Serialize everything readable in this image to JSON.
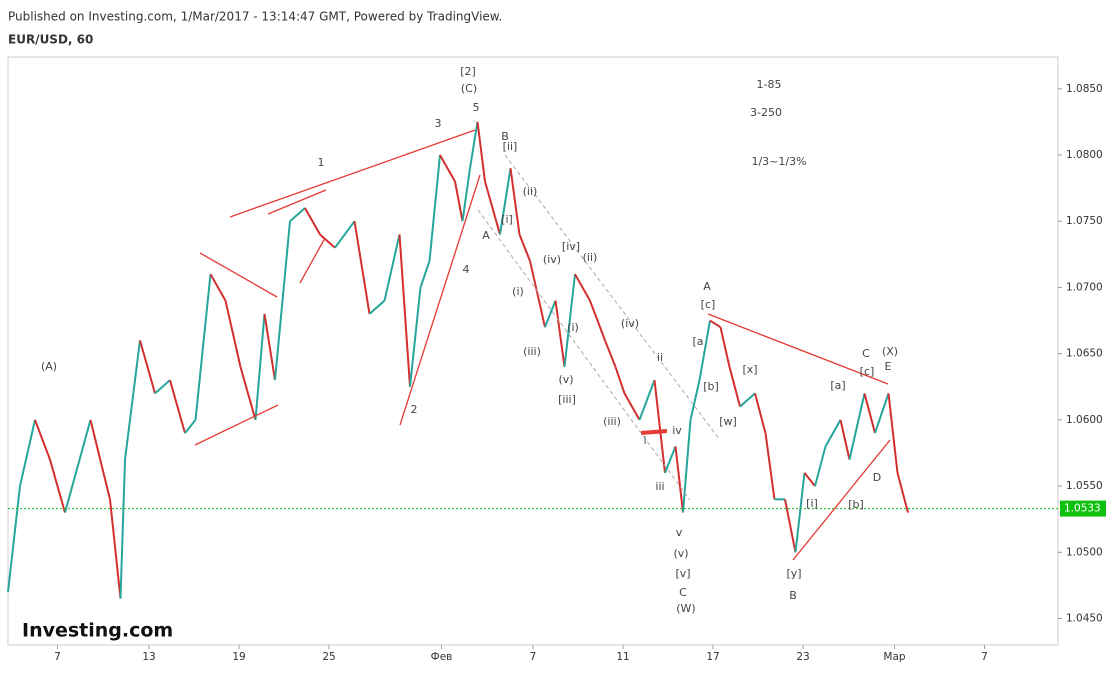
{
  "header": {
    "published": "Published on Investing.com, 1/Mar/2017 - 13:14:47 GMT, Powered by TradingView.",
    "symbol": "EUR/USD, 60"
  },
  "logo": "Investing.com",
  "chart_data": {
    "type": "line",
    "x": [
      0,
      0.8,
      1.8,
      2.8,
      3.8,
      5.5,
      6.8,
      7.5,
      7.8,
      8.8,
      9.8,
      10.8,
      11.8,
      12.5,
      13.5,
      14.5,
      15.5,
      16.5,
      17.1,
      17.8,
      18.8,
      19.8,
      20.8,
      21.8,
      23.1,
      24.1,
      25.1,
      26.1,
      26.8,
      27.5,
      28.1,
      28.8,
      29.8,
      30.3,
      30.8,
      31.3,
      31.8,
      32.8,
      33.5,
      34.1,
      34.8,
      35.8,
      36.5,
      37.1,
      37.8,
      38.8,
      39.8,
      40.5,
      41.1,
      42.1,
      43.1,
      43.8,
      44.5,
      45,
      45.5,
      46.1,
      46.8,
      47.5,
      48.1,
      48.8,
      49.8,
      50.5,
      51.1,
      51.8,
      52.5,
      53.1,
      53.8,
      54.5,
      55.5,
      56.1,
      57.1,
      57.8,
      58.7,
      59.3,
      60
    ],
    "series": [
      {
        "name": "EUR/USD",
        "up_color": "#26a69a",
        "down_color": "#d32f2f",
        "values": [
          1.047,
          1.055,
          1.06,
          1.057,
          1.053,
          1.06,
          1.054,
          1.0465,
          1.057,
          1.066,
          1.062,
          1.063,
          1.059,
          1.06,
          1.071,
          1.069,
          1.064,
          1.06,
          1.068,
          1.063,
          1.075,
          1.076,
          1.074,
          1.073,
          1.075,
          1.068,
          1.069,
          1.074,
          1.0625,
          1.07,
          1.072,
          1.08,
          1.078,
          1.075,
          1.079,
          1.0825,
          1.078,
          1.074,
          1.079,
          1.074,
          1.072,
          1.067,
          1.069,
          1.064,
          1.071,
          1.069,
          1.066,
          1.064,
          1.062,
          1.06,
          1.063,
          1.056,
          1.058,
          1.053,
          1.06,
          1.063,
          1.0675,
          1.067,
          1.064,
          1.061,
          1.062,
          1.059,
          1.054,
          1.054,
          1.05,
          1.056,
          1.055,
          1.058,
          1.06,
          1.057,
          1.062,
          1.059,
          1.062,
          1.056,
          1.053
        ]
      }
    ],
    "xlim": [
      0,
      70
    ],
    "xticks": [
      {
        "value": 3.3,
        "label": "7"
      },
      {
        "value": 9.4,
        "label": "13"
      },
      {
        "value": 15.4,
        "label": "19"
      },
      {
        "value": 21.4,
        "label": "25"
      },
      {
        "value": 28.9,
        "label": "Фев"
      },
      {
        "value": 35,
        "label": "7"
      },
      {
        "value": 41,
        "label": "11"
      },
      {
        "value": 47,
        "label": "17"
      },
      {
        "value": 53,
        "label": "23"
      },
      {
        "value": 59.1,
        "label": "Мар"
      },
      {
        "value": 65.1,
        "label": "7"
      }
    ],
    "ylim": [
      1.043,
      1.0874
    ],
    "yticks": [
      {
        "value": 1.045,
        "label": "1.0450"
      },
      {
        "value": 1.05,
        "label": "1.0500"
      },
      {
        "value": 1.055,
        "label": "1.0550"
      },
      {
        "value": 1.06,
        "label": "1.0600"
      },
      {
        "value": 1.065,
        "label": "1.0650"
      },
      {
        "value": 1.07,
        "label": "1.0700"
      },
      {
        "value": 1.075,
        "label": "1.0750"
      },
      {
        "value": 1.08,
        "label": "1.0800"
      },
      {
        "value": 1.085,
        "label": "1.0850"
      }
    ],
    "last_price": 1.0533,
    "last_price_color": "#10c010",
    "annotations": [
      "[2]",
      "(C)",
      "5",
      "3",
      "B",
      "[ii]",
      "1",
      "(ii)",
      "[i]",
      "A",
      "[iv]",
      "(ii)",
      "(iv)",
      "4",
      "(i)",
      "(i)",
      "(iv)",
      "(iii)",
      "ii",
      "(v)",
      "[iii]",
      "2",
      "(iii)",
      "i",
      "iv",
      "iii",
      "v",
      "(v)",
      "[v]",
      "C",
      "(W)",
      "(A)",
      "A",
      "[c]",
      "[a",
      "[b]",
      "[x]",
      "[w]",
      "C",
      "(X)",
      "[c]",
      "E",
      "[a]",
      "D",
      "[b]",
      "[i]",
      "[y]",
      "B",
      "1-85",
      "3-250",
      "1/3~1/3%"
    ]
  }
}
